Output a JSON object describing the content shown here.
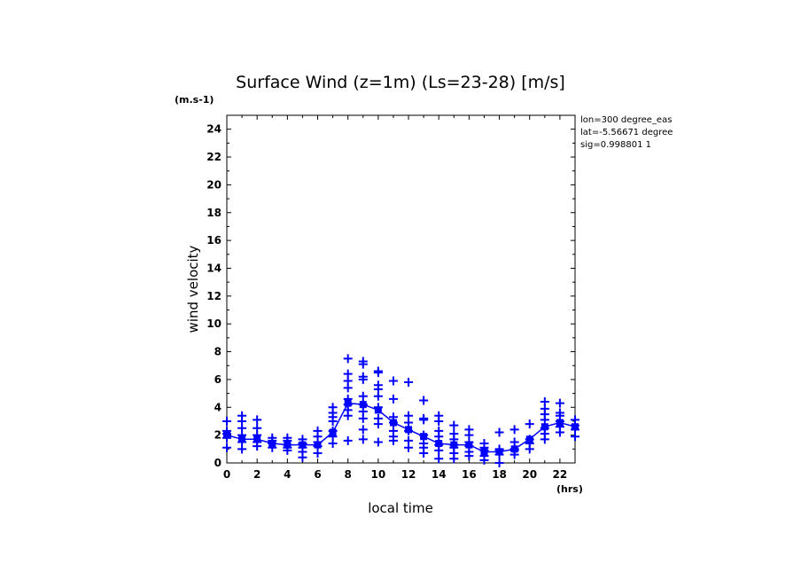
{
  "chart_data": {
    "type": "scatter",
    "title": "Surface Wind (z=1m) (Ls=23-28) [m/s]",
    "y_unit_label": "(m.s-1)",
    "x_unit_label": "(hrs)",
    "xlabel": "local time",
    "ylabel": "wind velocity",
    "info_lines": [
      "lon=300 degree_eas",
      "lat=-5.56671 degree",
      "sig=0.998801 1"
    ],
    "xlim": [
      0,
      23
    ],
    "ylim": [
      0,
      25
    ],
    "x_ticks": [
      0,
      2,
      4,
      6,
      8,
      10,
      12,
      14,
      16,
      18,
      20,
      22
    ],
    "y_ticks": [
      0,
      2,
      4,
      6,
      8,
      10,
      12,
      14,
      16,
      18,
      20,
      22,
      24
    ],
    "grid": false,
    "color": "#0000ff",
    "series": [
      {
        "marker": "plus",
        "points": [
          [
            0,
            1.1
          ],
          [
            0,
            1.8
          ],
          [
            0,
            2.1
          ],
          [
            0,
            2.3
          ],
          [
            0,
            3.0
          ],
          [
            1,
            1.0
          ],
          [
            1,
            1.5
          ],
          [
            1,
            2.0
          ],
          [
            1,
            2.5
          ],
          [
            1,
            3.0
          ],
          [
            1,
            3.4
          ],
          [
            2,
            1.2
          ],
          [
            2,
            1.5
          ],
          [
            2,
            2.0
          ],
          [
            2,
            2.5
          ],
          [
            2,
            3.1
          ],
          [
            3,
            1.1
          ],
          [
            3,
            1.4
          ],
          [
            3,
            1.6
          ],
          [
            3,
            1.8
          ],
          [
            4,
            0.9
          ],
          [
            4,
            1.1
          ],
          [
            4,
            1.3
          ],
          [
            4,
            1.6
          ],
          [
            4,
            1.8
          ],
          [
            5,
            0.4
          ],
          [
            5,
            0.8
          ],
          [
            5,
            1.1
          ],
          [
            5,
            1.4
          ],
          [
            5,
            1.7
          ],
          [
            6,
            0.7
          ],
          [
            6,
            1.2
          ],
          [
            6,
            1.5
          ],
          [
            6,
            1.9
          ],
          [
            6,
            2.3
          ],
          [
            7,
            1.4
          ],
          [
            7,
            1.9
          ],
          [
            7,
            2.3
          ],
          [
            7,
            3.0
          ],
          [
            7,
            3.3
          ],
          [
            7,
            3.6
          ],
          [
            7,
            4.0
          ],
          [
            8,
            1.6
          ],
          [
            8,
            3.4
          ],
          [
            8,
            3.8
          ],
          [
            8,
            4.2
          ],
          [
            8,
            4.6
          ],
          [
            8,
            5.4
          ],
          [
            8,
            5.9
          ],
          [
            8,
            6.4
          ],
          [
            8,
            7.5
          ],
          [
            9,
            1.7
          ],
          [
            9,
            2.4
          ],
          [
            9,
            3.2
          ],
          [
            9,
            3.7
          ],
          [
            9,
            4.2
          ],
          [
            9,
            4.8
          ],
          [
            9,
            6.0
          ],
          [
            9,
            6.2
          ],
          [
            9,
            7.1
          ],
          [
            9,
            7.3
          ],
          [
            10,
            1.5
          ],
          [
            10,
            2.8
          ],
          [
            10,
            3.2
          ],
          [
            10,
            4.0
          ],
          [
            10,
            4.8
          ],
          [
            10,
            5.3
          ],
          [
            10,
            5.6
          ],
          [
            10,
            6.5
          ],
          [
            10,
            6.6
          ],
          [
            11,
            1.6
          ],
          [
            11,
            1.9
          ],
          [
            11,
            2.3
          ],
          [
            11,
            2.9
          ],
          [
            11,
            3.3
          ],
          [
            11,
            4.6
          ],
          [
            11,
            5.9
          ],
          [
            12,
            1.1
          ],
          [
            12,
            1.6
          ],
          [
            12,
            2.3
          ],
          [
            12,
            2.9
          ],
          [
            12,
            3.4
          ],
          [
            12,
            5.8
          ],
          [
            13,
            0.7
          ],
          [
            13,
            1.1
          ],
          [
            13,
            1.4
          ],
          [
            13,
            2.0
          ],
          [
            13,
            3.1
          ],
          [
            13,
            3.2
          ],
          [
            13,
            4.5
          ],
          [
            14,
            0.3
          ],
          [
            14,
            0.9
          ],
          [
            14,
            1.3
          ],
          [
            14,
            1.9
          ],
          [
            14,
            2.3
          ],
          [
            14,
            3.0
          ],
          [
            14,
            3.4
          ],
          [
            15,
            0.3
          ],
          [
            15,
            0.7
          ],
          [
            15,
            1.1
          ],
          [
            15,
            1.3
          ],
          [
            15,
            1.7
          ],
          [
            15,
            2.1
          ],
          [
            15,
            2.7
          ],
          [
            16,
            0.5
          ],
          [
            16,
            0.8
          ],
          [
            16,
            1.2
          ],
          [
            16,
            1.5
          ],
          [
            16,
            2.0
          ],
          [
            16,
            2.4
          ],
          [
            17,
            0.2
          ],
          [
            17,
            0.5
          ],
          [
            17,
            0.9
          ],
          [
            17,
            1.1
          ],
          [
            17,
            1.4
          ],
          [
            18,
            0.0
          ],
          [
            18,
            0.6
          ],
          [
            18,
            0.9
          ],
          [
            18,
            1.0
          ],
          [
            18,
            2.2
          ],
          [
            19,
            0.6
          ],
          [
            19,
            0.9
          ],
          [
            19,
            1.0
          ],
          [
            19,
            1.5
          ],
          [
            19,
            2.4
          ],
          [
            20,
            1.0
          ],
          [
            20,
            1.4
          ],
          [
            20,
            1.7
          ],
          [
            20,
            2.8
          ],
          [
            21,
            1.7
          ],
          [
            21,
            2.1
          ],
          [
            21,
            2.5
          ],
          [
            21,
            3.1
          ],
          [
            21,
            3.5
          ],
          [
            21,
            3.9
          ],
          [
            21,
            4.4
          ],
          [
            22,
            2.2
          ],
          [
            22,
            2.6
          ],
          [
            22,
            3.0
          ],
          [
            22,
            3.4
          ],
          [
            22,
            3.6
          ],
          [
            22,
            4.3
          ],
          [
            23,
            1.9
          ],
          [
            23,
            2.4
          ],
          [
            23,
            2.7
          ],
          [
            23,
            3.1
          ]
        ]
      },
      {
        "marker": "square-line",
        "x": [
          0,
          1,
          2,
          3,
          4,
          5,
          6,
          7,
          8,
          9,
          10,
          11,
          12,
          13,
          14,
          15,
          16,
          17,
          18,
          19,
          20,
          21,
          22,
          23
        ],
        "values": [
          2.0,
          1.7,
          1.7,
          1.4,
          1.3,
          1.3,
          1.3,
          2.2,
          4.3,
          4.2,
          3.8,
          2.9,
          2.4,
          1.9,
          1.4,
          1.3,
          1.3,
          0.8,
          0.8,
          1.0,
          1.7,
          2.6,
          2.9,
          2.6
        ]
      }
    ]
  }
}
